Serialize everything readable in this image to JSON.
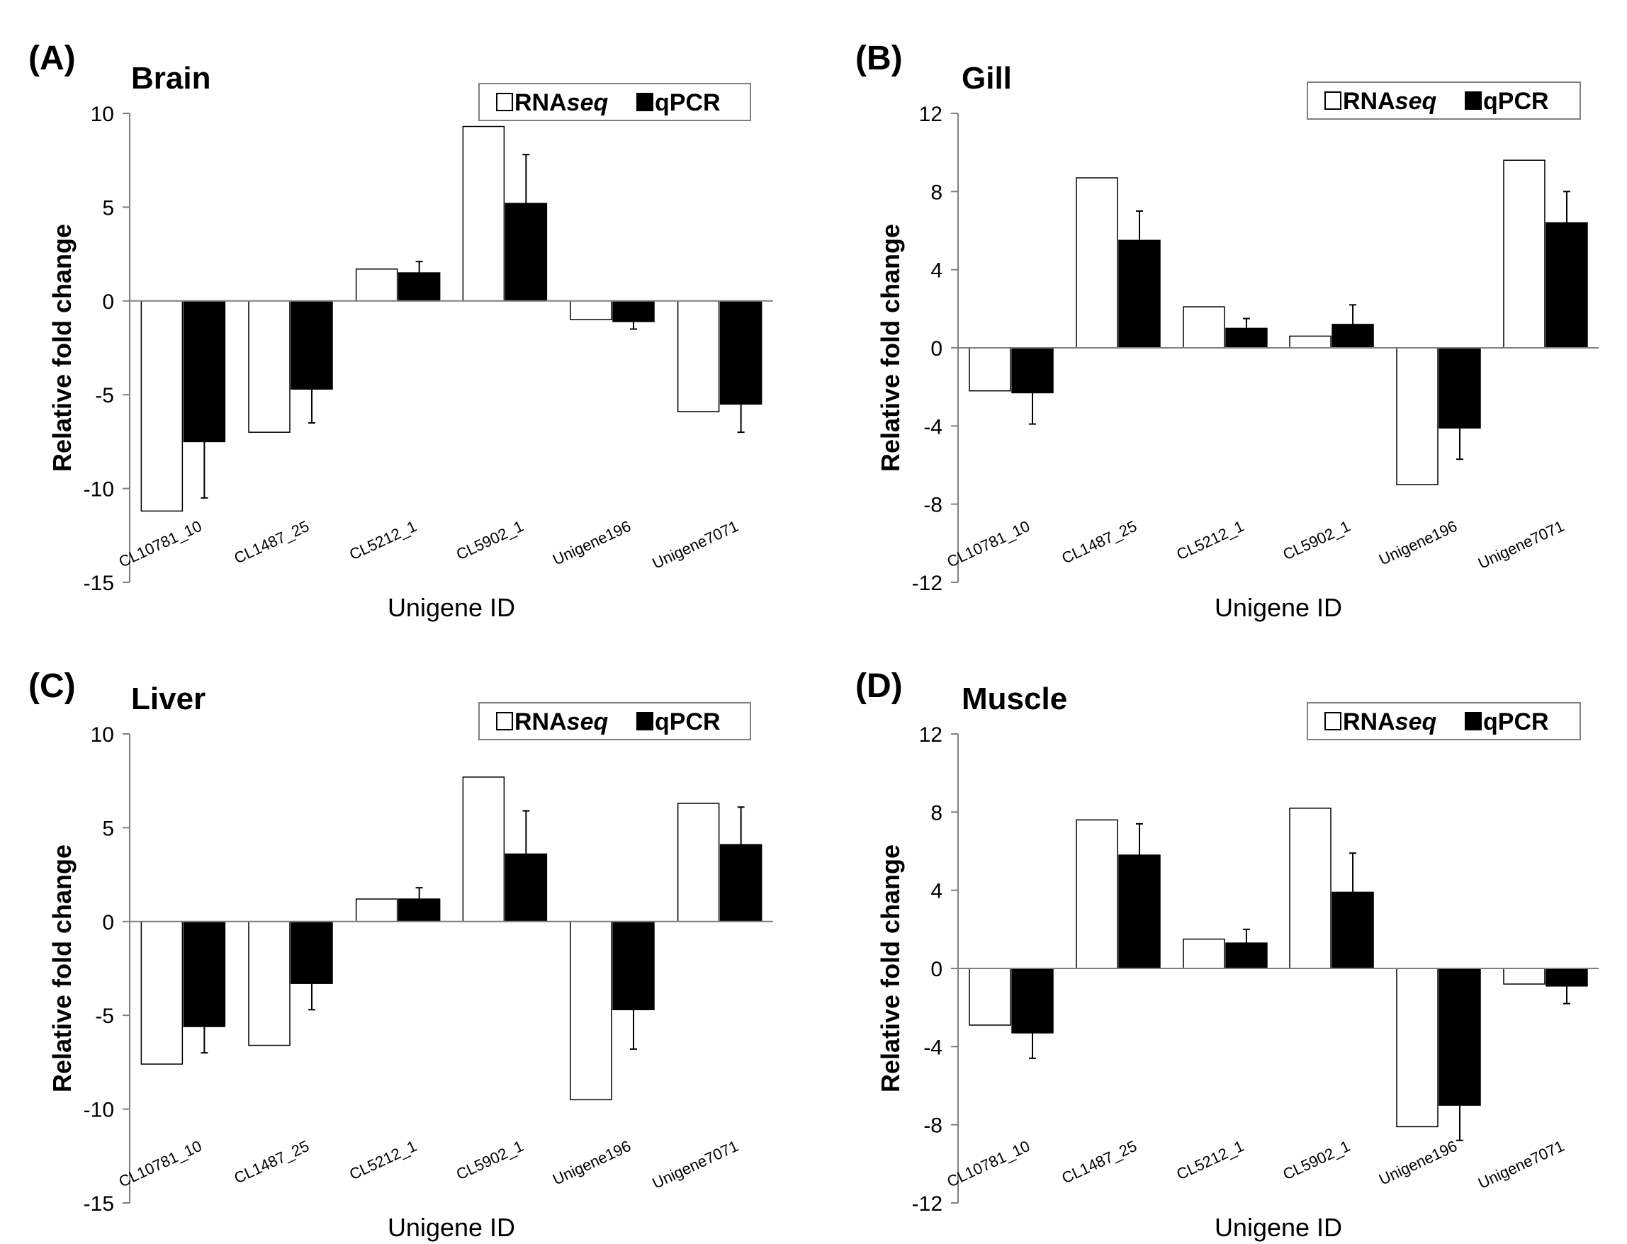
{
  "chart_data": [
    {
      "type": "bar",
      "panel": "(A)",
      "title": "Brain",
      "xlabel": "Unigene ID",
      "ylabel": "Relative fold change",
      "ylim": [
        -15,
        10
      ],
      "yticks": [
        10,
        5,
        0,
        -5,
        -10,
        -15
      ],
      "categories": [
        "CL10781_10",
        "CL1487_25",
        "CL5212_1",
        "CL5902_1",
        "Unigene196",
        "Unigene7071"
      ],
      "series": [
        {
          "name": "RNAseq",
          "color": "#ffffff",
          "values": [
            -11.2,
            -7.0,
            1.7,
            9.3,
            -1.0,
            -5.9
          ],
          "errors": [
            null,
            null,
            null,
            null,
            null,
            null
          ]
        },
        {
          "name": "qPCR",
          "color": "#000000",
          "values": [
            -7.5,
            -4.7,
            1.5,
            5.2,
            -1.1,
            -5.5
          ],
          "errors": [
            3.0,
            1.8,
            0.6,
            2.6,
            0.4,
            1.5
          ]
        }
      ]
    },
    {
      "type": "bar",
      "panel": "(B)",
      "title": "Gill",
      "xlabel": "Unigene ID",
      "ylabel": "Relative fold change",
      "ylim": [
        -12,
        12
      ],
      "yticks": [
        12,
        8,
        4,
        0,
        -4,
        -8,
        -12
      ],
      "categories": [
        "CL10781_10",
        "CL1487_25",
        "CL5212_1",
        "CL5902_1",
        "Unigene196",
        "Unigene7071"
      ],
      "series": [
        {
          "name": "RNAseq",
          "color": "#ffffff",
          "values": [
            -2.2,
            8.7,
            2.1,
            0.6,
            -7.0,
            9.6
          ],
          "errors": [
            null,
            null,
            null,
            null,
            null,
            null
          ]
        },
        {
          "name": "qPCR",
          "color": "#000000",
          "values": [
            -2.3,
            5.5,
            1.0,
            1.2,
            -4.1,
            6.4
          ],
          "errors": [
            1.6,
            1.5,
            0.5,
            1.0,
            1.6,
            1.6
          ]
        }
      ]
    },
    {
      "type": "bar",
      "panel": "(C)",
      "title": "Liver",
      "xlabel": "Unigene ID",
      "ylabel": "Relative fold change",
      "ylim": [
        -15,
        10
      ],
      "yticks": [
        10,
        5,
        0,
        -5,
        -10,
        -15
      ],
      "categories": [
        "CL10781_10",
        "CL1487_25",
        "CL5212_1",
        "CL5902_1",
        "Unigene196",
        "Unigene7071"
      ],
      "series": [
        {
          "name": "RNAseq",
          "color": "#ffffff",
          "values": [
            -7.6,
            -6.6,
            1.2,
            7.7,
            -9.5,
            6.3
          ],
          "errors": [
            null,
            null,
            null,
            null,
            null,
            null
          ]
        },
        {
          "name": "qPCR",
          "color": "#000000",
          "values": [
            -5.6,
            -3.3,
            1.2,
            3.6,
            -4.7,
            4.1
          ],
          "errors": [
            1.4,
            1.4,
            0.6,
            2.3,
            2.1,
            2.0
          ]
        }
      ]
    },
    {
      "type": "bar",
      "panel": "(D)",
      "title": "Muscle",
      "xlabel": "Unigene ID",
      "ylabel": "Relative fold change",
      "ylim": [
        -12,
        12
      ],
      "yticks": [
        12,
        8,
        4,
        0,
        -4,
        -8,
        -12
      ],
      "categories": [
        "CL10781_10",
        "CL1487_25",
        "CL5212_1",
        "CL5902_1",
        "Unigene196",
        "Unigene7071"
      ],
      "series": [
        {
          "name": "RNAseq",
          "color": "#ffffff",
          "values": [
            -2.9,
            7.6,
            1.5,
            8.2,
            -8.1,
            -0.8
          ],
          "errors": [
            null,
            null,
            null,
            null,
            null,
            null
          ]
        },
        {
          "name": "qPCR",
          "color": "#000000",
          "values": [
            -3.3,
            5.8,
            1.3,
            3.9,
            -7.0,
            -0.9
          ],
          "errors": [
            1.3,
            1.6,
            0.7,
            2.0,
            1.8,
            0.9
          ]
        }
      ]
    }
  ],
  "legend": {
    "prefix": "RNA",
    "italic": "seq",
    "second": "qPCR"
  }
}
